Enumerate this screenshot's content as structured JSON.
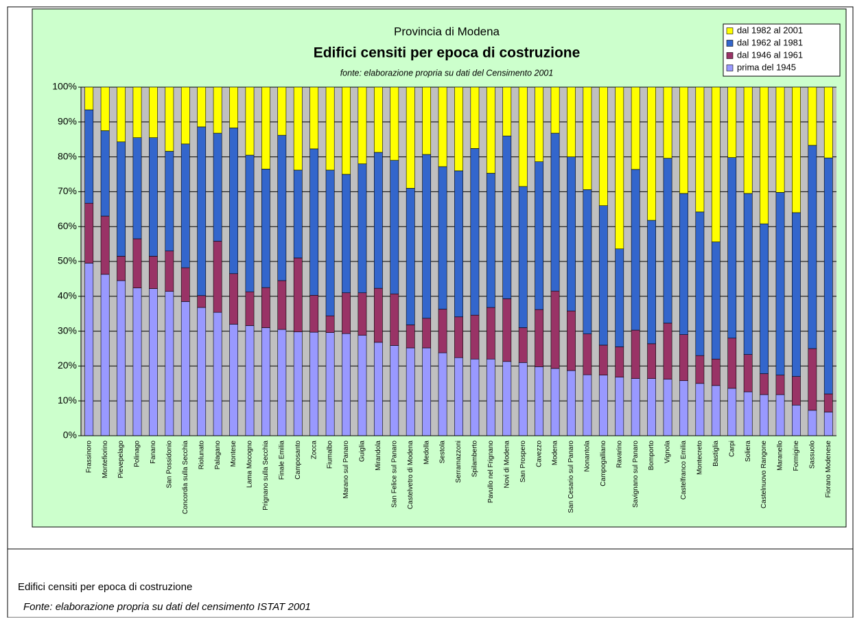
{
  "chart_data": {
    "type": "stacked_bar_100",
    "header": "Provincia di Modena",
    "title": "Edifici censiti per epoca di costruzione",
    "subtitle": "fonte: elaborazione propria su dati del Censimento  2001",
    "categories": [
      "Frassinoro",
      "Montefiorino",
      "Pievepelago",
      "Polinago",
      "Fanano",
      "San Possidonio",
      "Concordia sulla Secchia",
      "Riolunato",
      "Palagano",
      "Montese",
      "Lama Mocogno",
      "Prignano sulla Secchia",
      "Finale Emilia",
      "Camposanto",
      "Zocca",
      "Fiumalbo",
      "Marano sul Panaro",
      "Guiglia",
      "Mirandola",
      "San Felice sul Panaro",
      "Castelvetro di Modena",
      "Medolla",
      "Sestola",
      "Serramazzoni",
      "Spilamberto",
      "Pavullo nel Frignano",
      "Novi di Modena",
      "San Prospero",
      "Cavezzo",
      "Modena",
      "San Cesario sul Panaro",
      "Nonantola",
      "Campogalliano",
      "Ravarino",
      "Savignano sul Panaro",
      "Bomporto",
      "Vignola",
      "Castelfranco Emilia",
      "Montecreto",
      "Bastiglia",
      "Carpi",
      "Soliera",
      "Castelnuovo Rangone",
      "Maranello",
      "Formigine",
      "Sassuolo",
      "Fiorano Modenese"
    ],
    "series": [
      {
        "name": "prima del 1945",
        "color": "#9999ff",
        "values": [
          49.5,
          46.3,
          44.5,
          42.4,
          42.2,
          41.4,
          38.5,
          36.8,
          35.4,
          32,
          31.6,
          31,
          30.5,
          29.8,
          29.7,
          29.6,
          29.3,
          28.8,
          26.8,
          25.9,
          25.2,
          25.2,
          23.8,
          22.4,
          22,
          22,
          21.3,
          21,
          19.8,
          19.3,
          18.7,
          17.5,
          17.4,
          16.8,
          16.4,
          16.4,
          16.2,
          15.8,
          15,
          14.4,
          13.6,
          12.6,
          11.8,
          11.8,
          8.8,
          7.3,
          6.8
        ]
      },
      {
        "name": "dal 1946 al 1961",
        "color": "#993366",
        "values": [
          17.2,
          16.7,
          7,
          14.1,
          9.3,
          11.6,
          9.7,
          3.4,
          20.4,
          14.5,
          9.7,
          11.5,
          14,
          21.2,
          10.6,
          4.8,
          11.7,
          12.2,
          15.5,
          14.8,
          6.6,
          8.5,
          12.5,
          11.7,
          12.6,
          14.8,
          18,
          10,
          16.4,
          22.2,
          17.1,
          11.7,
          8.6,
          8.7,
          13.9,
          10,
          16.1,
          13.2,
          8,
          7.6,
          14.4,
          10.7,
          6,
          5.6,
          8.2,
          17.7,
          5.2
        ]
      },
      {
        "name": "dal 1962 al 1981",
        "color": "#3366cc",
        "values": [
          26.8,
          24.5,
          32.8,
          29,
          34,
          28.6,
          35.5,
          48.4,
          31,
          41.8,
          39.2,
          34,
          41.7,
          25.2,
          42,
          41.8,
          34,
          37,
          39,
          38.3,
          39.2,
          47,
          40.9,
          41.9,
          47.8,
          38.5,
          46.7,
          40.5,
          42.4,
          45.3,
          44.2,
          41.4,
          40,
          28.1,
          46.1,
          35.4,
          47.3,
          40.5,
          41.2,
          33.6,
          51.8,
          46.2,
          43,
          52.4,
          47,
          58.3,
          67.7
        ]
      },
      {
        "name": "dal 1982 al 2001",
        "color": "#ffff00",
        "values": [
          6.5,
          12.5,
          15.7,
          14.5,
          14.5,
          18.4,
          16.3,
          11.4,
          13.2,
          11.7,
          19.5,
          23.5,
          13.8,
          23.8,
          17.7,
          23.8,
          25,
          22,
          18.7,
          21,
          29,
          19.3,
          22.8,
          24,
          17.6,
          24.7,
          14,
          28.5,
          21.4,
          13.2,
          20,
          29.4,
          34,
          46.4,
          23.6,
          38.2,
          20.4,
          30.5,
          35.8,
          44.4,
          20.2,
          30.5,
          39.2,
          30.2,
          36,
          16.7,
          20.3
        ]
      }
    ],
    "ylim": [
      0,
      100
    ],
    "yticks": [
      {
        "value": 0,
        "label": "0%"
      },
      {
        "value": 10,
        "label": "10%"
      },
      {
        "value": 20,
        "label": "20%"
      },
      {
        "value": 30,
        "label": "30%"
      },
      {
        "value": 40,
        "label": "40%"
      },
      {
        "value": 50,
        "label": "50%"
      },
      {
        "value": 60,
        "label": "60%"
      },
      {
        "value": 70,
        "label": "70%"
      },
      {
        "value": 80,
        "label": "80%"
      },
      {
        "value": 90,
        "label": "90%"
      },
      {
        "value": 100,
        "label": "100%"
      }
    ],
    "grid": true,
    "legend": "top-right"
  },
  "caption": {
    "title": "Edifici censiti per epoca di costruzione",
    "source": "Fonte: elaborazione propria su dati del censimento ISTAT 2001"
  }
}
